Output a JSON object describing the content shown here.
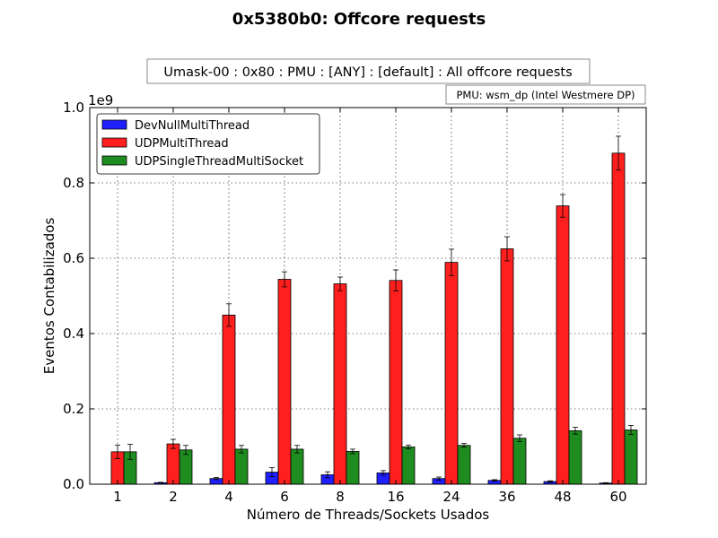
{
  "chart_data": {
    "type": "bar",
    "title": "0x5380b0: Offcore requests",
    "subtitle": "Umask-00 : 0x80 : PMU : [ANY] : [default] : All offcore requests",
    "annotation": "PMU: wsm_dp (Intel Westmere DP)",
    "xlabel": "Número de Threads/Sockets Usados",
    "ylabel": "Eventos Contabilizados",
    "y_scale_label": "1e9",
    "ylim": [
      0,
      1.0
    ],
    "yticks": [
      "0.0",
      "0.2",
      "0.4",
      "0.6",
      "0.8",
      "1.0"
    ],
    "ytick_values": [
      0,
      0.2,
      0.4,
      0.6,
      0.8,
      1.0
    ],
    "grid": true,
    "legend_position": "top-left",
    "categories": [
      "1",
      "2",
      "4",
      "6",
      "8",
      "16",
      "24",
      "36",
      "48",
      "60"
    ],
    "series": [
      {
        "name": "DevNullMultiThread",
        "color": "#1f1fff",
        "values": [
          0,
          0.004,
          0.015,
          0.032,
          0.025,
          0.03,
          0.015,
          0.01,
          0.007,
          0.003
        ],
        "errors": [
          0,
          0.001,
          0.003,
          0.012,
          0.008,
          0.006,
          0.004,
          0.002,
          0.002,
          0.001
        ]
      },
      {
        "name": "UDPMultiThread",
        "color": "#ff1f1f",
        "values": [
          0.086,
          0.107,
          0.449,
          0.544,
          0.532,
          0.541,
          0.589,
          0.625,
          0.739,
          0.879
        ],
        "errors": [
          0.018,
          0.012,
          0.03,
          0.02,
          0.018,
          0.028,
          0.035,
          0.032,
          0.03,
          0.045
        ]
      },
      {
        "name": "UDPSingleThreadMultiSocket",
        "color": "#1f8c1f",
        "values": [
          0.086,
          0.091,
          0.093,
          0.093,
          0.087,
          0.099,
          0.103,
          0.122,
          0.142,
          0.144
        ],
        "errors": [
          0.02,
          0.012,
          0.01,
          0.01,
          0.006,
          0.005,
          0.005,
          0.009,
          0.009,
          0.012
        ]
      }
    ]
  }
}
